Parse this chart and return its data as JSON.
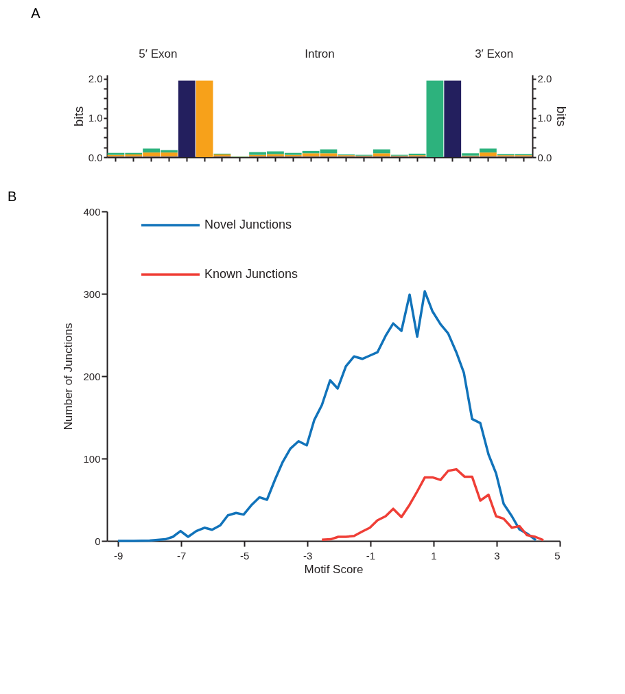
{
  "chart_data": [
    {
      "type": "bar",
      "title": "A",
      "stacked": true,
      "ylabel": "bits",
      "y2label": "bits",
      "categories": [
        null,
        null,
        null,
        null,
        null,
        null,
        null,
        null,
        null,
        null,
        null,
        null,
        null,
        null,
        null,
        null,
        null,
        null,
        null,
        null,
        null,
        null,
        null,
        null
      ],
      "ylim": [
        0,
        2.1
      ],
      "yticks": [
        {
          "value": 0,
          "label": "0.0"
        },
        {
          "value": 0.25,
          "label": null
        },
        {
          "value": 0.5,
          "label": null
        },
        {
          "value": 0.75,
          "label": null
        },
        {
          "value": 1,
          "label": "1.0"
        },
        {
          "value": 1.25,
          "label": null
        },
        {
          "value": 1.5,
          "label": null
        },
        {
          "value": 1.75,
          "label": null
        },
        {
          "value": 2,
          "label": "2.0"
        }
      ],
      "y2lim": [
        0,
        2.1
      ],
      "y2ticks": [
        {
          "value": 0,
          "label": "0.0"
        },
        {
          "value": 0.25,
          "label": null
        },
        {
          "value": 0.5,
          "label": null
        },
        {
          "value": 0.75,
          "label": null
        },
        {
          "value": 1,
          "label": "1.0"
        },
        {
          "value": 1.25,
          "label": null
        },
        {
          "value": 1.5,
          "label": null
        },
        {
          "value": 1.75,
          "label": null
        },
        {
          "value": 2,
          "label": "2.0"
        }
      ],
      "tick_labels": "y",
      "series": [
        {
          "color": "#3b55a3",
          "values": [
            0.01,
            0.01,
            0.01,
            0.01,
            0,
            0,
            0.01,
            0,
            0.01,
            0.01,
            0.01,
            0.01,
            0.01,
            0.01,
            0.01,
            0.01,
            0.01,
            0.01,
            0,
            0,
            0.01,
            0.01,
            0.01,
            0.01
          ]
        },
        {
          "color": "#231f5e",
          "values": [
            0.01,
            0.01,
            0.01,
            0.01,
            1.95,
            0,
            0.01,
            0,
            0.01,
            0.01,
            0.01,
            0.01,
            0.01,
            0.01,
            0.01,
            0.01,
            0.01,
            0.01,
            0,
            1.95,
            0.01,
            0.01,
            0.01,
            0.01
          ]
        },
        {
          "color": "#f7a11a",
          "values": [
            0.04,
            0.05,
            0.1,
            0.1,
            0,
            1.95,
            0.05,
            0.01,
            0.04,
            0.06,
            0.04,
            0.08,
            0.08,
            0.03,
            0.02,
            0.08,
            0.02,
            0.03,
            0,
            0,
            0.02,
            0.1,
            0.03,
            0.03
          ]
        },
        {
          "color": "#2db27d",
          "values": [
            0.05,
            0.04,
            0.1,
            0.06,
            0,
            0,
            0.02,
            0.01,
            0.07,
            0.07,
            0.05,
            0.06,
            0.1,
            0.02,
            0.02,
            0.1,
            0.02,
            0.04,
            1.95,
            0,
            0.06,
            0.1,
            0.03,
            0.03
          ]
        }
      ],
      "annotations": [
        "5′ Exon",
        "Intron",
        "3′ Exon"
      ],
      "grid": false
    },
    {
      "type": "line",
      "title": "B",
      "xlabel": "Motif Score",
      "ylabel": "Number of Junctions",
      "xlim": [
        -9.35,
        5
      ],
      "xticks": [
        -9,
        -7,
        -5,
        -3,
        -1,
        1,
        3,
        5
      ],
      "ylim": [
        0,
        400
      ],
      "yticks": [
        0,
        100,
        200,
        300,
        400
      ],
      "grid": false,
      "legend": "top left",
      "line_style": "solid",
      "marker": "none",
      "series": [
        {
          "name": "Novel Junctions",
          "color": "#1173ba",
          "x": [
            -9,
            -8.5,
            -8,
            -7.5,
            -7.26,
            -7.02,
            -6.78,
            -6.52,
            -6.26,
            -6.02,
            -5.76,
            -5.52,
            -5.26,
            -5.02,
            -4.76,
            -4.52,
            -4.28,
            -4.02,
            -3.78,
            -3.54,
            -3.28,
            -3.02,
            -2.78,
            -2.54,
            -2.28,
            -2.04,
            -1.78,
            -1.52,
            -1.26,
            -1.02,
            -0.78,
            -0.52,
            -0.28,
            -0.02,
            0.24,
            0.48,
            0.72,
            0.96,
            1.22,
            1.46,
            1.72,
            1.96,
            2.22,
            2.48,
            2.74,
            2.98,
            3.22,
            3.48,
            3.72,
            3.96,
            4.24
          ],
          "values": [
            0,
            0,
            0.5,
            2,
            5,
            12,
            5,
            12,
            16,
            13.5,
            19,
            31,
            34,
            32,
            44,
            53,
            50,
            75,
            96,
            112,
            121,
            116,
            147,
            165,
            195,
            185,
            212,
            224,
            221,
            225,
            229,
            249,
            264,
            255,
            299,
            248,
            303,
            279,
            263,
            252,
            229,
            204,
            148,
            143,
            105,
            82,
            45,
            30,
            14,
            9,
            1
          ]
        },
        {
          "name": "Known Junctions",
          "color": "#ef3e36",
          "x": [
            -2.54,
            -2.26,
            -2.02,
            -1.78,
            -1.52,
            -1.28,
            -1.02,
            -0.78,
            -0.52,
            -0.28,
            -0.02,
            0.24,
            0.48,
            0.72,
            0.98,
            1.22,
            1.46,
            1.72,
            1.98,
            2.22,
            2.48,
            2.74,
            2.98,
            3.22,
            3.48,
            3.72,
            3.96,
            4.22,
            4.48
          ],
          "values": [
            1.5,
            2,
            5,
            5,
            6,
            11,
            16,
            25,
            30,
            39,
            29,
            44,
            60,
            77,
            77,
            74,
            85,
            87,
            78,
            78,
            49,
            56,
            30,
            27,
            16,
            18,
            7,
            5,
            1
          ]
        }
      ]
    }
  ]
}
